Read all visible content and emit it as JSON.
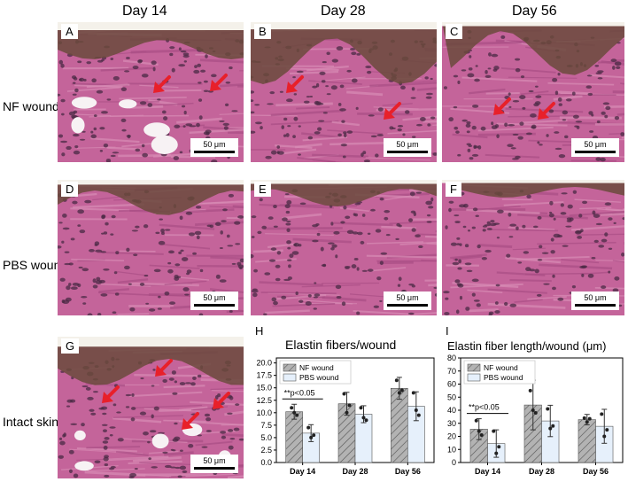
{
  "columns": [
    "Day 14",
    "Day 28",
    "Day 56"
  ],
  "rows": [
    "NF wound",
    "PBS wound",
    "Intact skin"
  ],
  "panels": [
    {
      "letter": "A",
      "scale": "50 μm",
      "arrows": 2
    },
    {
      "letter": "B",
      "scale": "50 μm",
      "arrows": 2
    },
    {
      "letter": "C",
      "scale": "50 μm",
      "arrows": 2
    },
    {
      "letter": "D",
      "scale": "50 μm",
      "arrows": 0
    },
    {
      "letter": "E",
      "scale": "50 μm",
      "arrows": 0
    },
    {
      "letter": "F",
      "scale": "50 μm",
      "arrows": 0
    },
    {
      "letter": "G",
      "scale": "50 μm",
      "arrows": 4
    }
  ],
  "colors": {
    "nf_bar": "#b3b3b3",
    "pbs_bar": "#e6f0fb",
    "arrow": "#e8202a",
    "tissue": "#c4649a",
    "epidermis": "#6b4a3c"
  },
  "chart_data": [
    {
      "type": "bar",
      "letter": "H",
      "title": "Elastin fibers/wound",
      "categories": [
        "Day 14",
        "Day 28",
        "Day 56"
      ],
      "ylim": [
        0,
        21
      ],
      "yticks": [
        0.0,
        2.5,
        5.0,
        7.5,
        10.0,
        12.5,
        15.0,
        17.5,
        20.0
      ],
      "ytick_labels": [
        "0.0",
        "2.5",
        "5.0",
        "7.5",
        "10.0",
        "12.5",
        "15.0",
        "17.5",
        "20.0"
      ],
      "series": [
        {
          "name": "NF wound",
          "values": [
            10.2,
            11.8,
            14.9
          ],
          "err": [
            1.5,
            2.3,
            2.2
          ]
        },
        {
          "name": "PBS wound",
          "values": [
            5.9,
            9.7,
            11.3
          ],
          "err": [
            1.7,
            1.7,
            2.9
          ]
        }
      ],
      "points": [
        [
          [
            11.0,
            10.0,
            9.5
          ],
          [
            13.8,
            10.0,
            11.5
          ],
          [
            16.5,
            14.0,
            14.5
          ]
        ],
        [
          [
            7.0,
            5.0,
            5.5
          ],
          [
            11.0,
            9.0,
            8.5
          ],
          [
            14.0,
            10.5,
            9.5
          ]
        ]
      ],
      "annotation": "**p<0.05",
      "legend": "top-left"
    },
    {
      "type": "bar",
      "letter": "I",
      "title": "Elastin fiber length/wound (μm)",
      "categories": [
        "Day 14",
        "Day 28",
        "Day 56"
      ],
      "ylim": [
        0,
        80
      ],
      "yticks": [
        0,
        10,
        20,
        30,
        40,
        50,
        60,
        70,
        80
      ],
      "ytick_labels": [
        "0",
        "10",
        "20",
        "30",
        "40",
        "50",
        "60",
        "70",
        "80"
      ],
      "series": [
        {
          "name": "NF wound",
          "values": [
            25.5,
            44.0,
            32.8
          ],
          "err": [
            8.0,
            19.0,
            4.0
          ]
        },
        {
          "name": "PBS wound",
          "values": [
            14.5,
            31.8,
            27.7
          ],
          "err": [
            10.5,
            12.0,
            13.0
          ]
        }
      ],
      "points": [
        [
          [
            32.0,
            24.0,
            21.0
          ],
          [
            55.0,
            40.0,
            38.0
          ],
          [
            34.0,
            31.0,
            33.5
          ]
        ],
        [
          [
            24.0,
            7.0,
            12.0
          ],
          [
            41.0,
            26.0,
            28.0
          ],
          [
            37.0,
            20.0,
            25.0
          ]
        ]
      ],
      "annotation": "**p<0.05",
      "legend": "top-left"
    }
  ]
}
